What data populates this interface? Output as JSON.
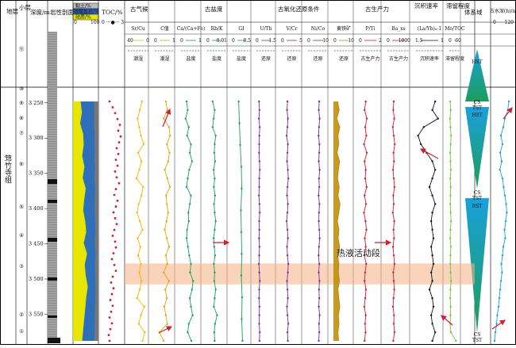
{
  "chart_data": {
    "type": "line",
    "column_headers": {
      "strat": "地层",
      "formation_name": "筇竹寺组",
      "layer": "小层",
      "depth": "深度/m",
      "lith": "岩性剖面",
      "mineral_clay": "黏土/%",
      "mineral_carb": "碳酸盐岩/%",
      "mineral_quartz": "硅质/%",
      "mineral_scale_a": "0",
      "mineral_scale_b": "100",
      "toc": "TOC/%",
      "toc_scale": "0 ···●··· 3",
      "paleoclimate": "古气候",
      "paleosalinity": "古盐度",
      "redox": "古氧化还原条件",
      "productivity": "古生产力",
      "sed_rate": "沉积速率",
      "restriction": "滞留程度",
      "systems_tract": "体系域",
      "water_depth": "古水深"
    },
    "depth_ticks": [
      "3 250",
      "3 300",
      "3 350",
      "3 400",
      "3 450",
      "3 500",
      "3 550"
    ],
    "layers": [
      "⑪",
      "⑩",
      "⑨",
      "⑧",
      "⑦",
      "⑥",
      "⑤",
      "④",
      "③",
      "②",
      "①"
    ],
    "proxies": [
      {
        "label": "Sr/Cu",
        "lo": "40",
        "hi": "0",
        "note": "潮湿",
        "color": "#f5b800",
        "values": [
          13,
          17,
          21,
          18,
          15,
          10,
          20,
          14,
          18,
          23,
          11,
          14,
          19,
          22,
          17,
          12,
          21,
          16,
          20,
          15,
          18,
          14,
          17,
          22,
          9,
          15,
          19,
          8,
          12
        ]
      },
      {
        "label": "C值",
        "lo": "0",
        "hi": "1",
        "note": "潮湿",
        "color": "#e8a800",
        "values": [
          0.55,
          0.62,
          0.45,
          0.7,
          0.75,
          0.6,
          0.72,
          0.66,
          0.5,
          0.62,
          0.74,
          0.56,
          0.6,
          0.66,
          0.58,
          0.5,
          0.6,
          0.7,
          0.55,
          0.62,
          0.45,
          0.7,
          0.52,
          0.6,
          0.48,
          0.55,
          0.62,
          0.25,
          0.45
        ]
      },
      {
        "label": "Ca/(Ca+Fe)",
        "lo": "0",
        "hi": "1",
        "note": "盐度",
        "color": "#17a05a",
        "values": [
          0.3,
          0.35,
          0.25,
          0.4,
          0.32,
          0.5,
          0.45,
          0.55,
          0.42,
          0.35,
          0.3,
          0.5,
          0.45,
          0.38,
          0.4,
          0.32,
          0.3,
          0.36,
          0.42,
          0.5,
          0.46,
          0.6,
          0.55,
          0.45,
          0.5,
          0.58,
          0.4,
          0.35,
          0.52
        ]
      },
      {
        "label": "Rb/K",
        "lo": "0",
        "hi": "0.01",
        "note": "盐度",
        "color": "#17a05a",
        "values": [
          0.003,
          0.004,
          0.0035,
          0.003,
          0.0045,
          0.004,
          0.0038,
          0.0042,
          0.0035,
          0.004,
          0.0036,
          0.0042,
          0.0037,
          0.004,
          0.0045,
          0.004,
          0.0035,
          0.0038,
          0.0042,
          0.0036,
          0.004,
          0.0038,
          0.0045,
          0.004,
          0.0036,
          0.0052,
          0.0042,
          0.0038,
          0.004
        ]
      },
      {
        "label": "GI",
        "lo": "0",
        "hi": "0.5",
        "note": "盐度",
        "color": "#17a05a",
        "values": [
          0.18,
          0.2,
          0.22,
          0.25,
          0.26,
          0.24,
          0.25,
          0.26,
          0.25,
          0.27,
          0.26,
          0.28
        ]
      },
      {
        "label": "U/Th",
        "lo": "0",
        "hi": "1.5",
        "note": "还原",
        "color": "#7a2d9c",
        "values": [
          0.25,
          0.28,
          0.24,
          0.3,
          0.27,
          0.26,
          0.25,
          0.28,
          0.3,
          0.27,
          0.26,
          0.24,
          0.28,
          0.3,
          0.26,
          0.27,
          0.25,
          0.28,
          0.26,
          0.24,
          0.27,
          0.3,
          0.26,
          0.25,
          0.28,
          0.27,
          0.26,
          0.3,
          0.28
        ]
      },
      {
        "label": "V/Cr",
        "lo": "0",
        "hi": "5",
        "note": "还原",
        "color": "#7a2d9c",
        "values": [
          1.5,
          1.4,
          1.6,
          1.5,
          1.3,
          1.6,
          1.5,
          1.4,
          1.6,
          1.7,
          1.5,
          1.4,
          1.6,
          1.5,
          1.3,
          1.5,
          1.6,
          1.4,
          1.5,
          1.7,
          1.6,
          1.4,
          1.5,
          1.6,
          1.4,
          1.5,
          1.7,
          1.5,
          1.6
        ]
      },
      {
        "label": "Ni/Co",
        "lo": "0",
        "hi": "10",
        "note": "还原",
        "color": "#7a2d9c",
        "values": [
          5.6,
          5.4,
          5.8,
          5.5,
          5.3,
          5.7,
          5.6,
          5.4,
          5.8,
          5.5,
          5.6,
          5.3,
          5.7,
          5.5,
          5.4,
          5.6,
          5.8,
          5.5,
          5.3,
          5.6,
          5.4,
          5.7,
          5.5,
          5.6,
          5.4,
          5.8,
          5.5,
          5.6,
          5.4
        ]
      },
      {
        "label": "黄铁矿",
        "lo": "0",
        "hi": "10",
        "note": "还原",
        "color": "#b88a00",
        "values": [
          2.0,
          2.8,
          1.6,
          3.1,
          2.2,
          2.6,
          1.8,
          3.0,
          2.4,
          2.0,
          2.8,
          2.2,
          3.2,
          2.6,
          1.9,
          2.7,
          2.3,
          3.0,
          2.1,
          2.6,
          2.4,
          2.9,
          2.2,
          2.6,
          3.1,
          2.4,
          2.7,
          2.2,
          2.5
        ]
      },
      {
        "label": "P/Ti",
        "lo": "0",
        "hi": "2",
        "note": "古生产力",
        "color": "#d81b2e",
        "values": [
          0.6,
          0.5,
          0.7,
          0.55,
          0.65,
          0.45,
          0.7,
          0.5,
          0.6,
          0.55,
          0.68,
          0.5,
          0.62,
          0.45,
          0.58,
          0.66,
          0.52,
          0.6,
          0.48,
          0.64,
          0.55,
          0.5,
          0.62,
          0.56,
          0.48,
          0.6,
          0.54,
          0.58,
          0.5
        ]
      },
      {
        "label": "Ba_xs",
        "lo": "0",
        "hi": "1000",
        "note": "古生产力",
        "color": "#d81b2e",
        "values": [
          300,
          280,
          320,
          260,
          300,
          340,
          290,
          310,
          270,
          300,
          330,
          280,
          300,
          260,
          320,
          290,
          310,
          270,
          300,
          330,
          280,
          300,
          320,
          290,
          270,
          310,
          300,
          330,
          280
        ]
      },
      {
        "label": "(La/Yb)ₙ-1",
        "lo": "1.5",
        "hi": "1",
        "note": "沉积速率",
        "color": "#111111",
        "values": [
          1.15,
          1.2,
          1.1,
          1.35,
          1.45,
          1.4,
          1.3,
          1.2,
          1.15,
          1.2,
          1.25,
          1.2,
          1.15,
          1.2,
          1.22,
          1.2,
          1.18,
          1.22,
          1.2,
          1.18,
          1.22,
          1.2,
          1.25,
          1.2,
          1.18,
          1.22,
          1.2,
          1.15,
          1.2
        ]
      },
      {
        "label": "Mo/TOC",
        "lo": "0",
        "hi": "60",
        "note": "滞留程度",
        "color": "#7bc043",
        "values": [
          8,
          10,
          7,
          9,
          12,
          10,
          8,
          9,
          11,
          8,
          10,
          9,
          8,
          10,
          12,
          9,
          8,
          11,
          9,
          8,
          10,
          12,
          9,
          8,
          10,
          9,
          8,
          11,
          35
        ]
      }
    ],
    "toc_values": [
      1.2,
      1.6,
      1.9,
      2.2,
      2.5,
      2.3,
      2.6,
      2.4,
      2.1,
      2.3,
      2.0,
      2.2,
      1.9,
      2.1,
      2.4,
      2.0,
      1.8,
      2.2,
      2.0,
      1.7,
      1.9,
      2.1,
      1.8,
      1.6,
      1.9,
      2.0,
      1.7,
      1.5,
      1.8,
      2.0,
      1.6,
      1.4,
      1.7,
      1.5,
      1.3,
      1.6,
      1.4,
      1.2,
      1.5,
      1.3,
      1.1,
      1.2
    ],
    "mineral_profile": [
      0.3,
      0.35,
      0.28,
      0.4,
      0.42,
      0.36,
      0.45,
      0.38,
      0.5,
      0.44,
      0.4,
      0.48,
      0.52,
      0.42,
      0.55,
      0.46,
      0.5,
      0.58,
      0.52,
      0.48,
      0.44,
      0.4,
      0.36
    ],
    "systems_tracts": [
      {
        "label": "HST",
        "kind": "HST"
      },
      {
        "label": "CS",
        "kind": "CS"
      },
      {
        "label": "TST",
        "kind": "TST"
      },
      {
        "label": "HST",
        "kind": "HST"
      },
      {
        "label": "CS",
        "kind": "CS"
      },
      {
        "label": "TST",
        "kind": "TST"
      },
      {
        "label": "RST",
        "kind": "RST"
      },
      {
        "label": "CS",
        "kind": "CS"
      },
      {
        "label": "TST",
        "kind": "TST"
      }
    ],
    "paleo_depth": {
      "label": "古水深(h)/m",
      "lo": "0",
      "hi": "120",
      "color": "#1aa0dc",
      "values": [
        95,
        88,
        70,
        60,
        45,
        55,
        40,
        50,
        38,
        55,
        62,
        70,
        78,
        82,
        75,
        68,
        72,
        60,
        55,
        48,
        52,
        45,
        40,
        35,
        30,
        22,
        18,
        10,
        5
      ]
    },
    "hydrothermal_label": "热液活动段",
    "hydrothermal_range": [
      3470,
      3485
    ],
    "depth_range": [
      3230,
      3590
    ],
    "colors": {
      "band": "#f4b183",
      "systems_green": "#1c9e5a",
      "systems_blue": "#2bb6c8"
    }
  }
}
